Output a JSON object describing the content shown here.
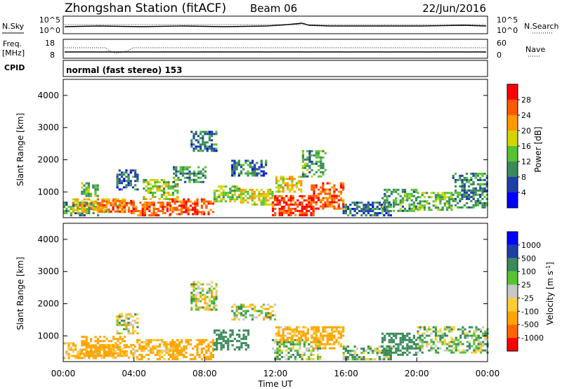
{
  "header": {
    "title": "Zhongshan Station (fitACF)",
    "beam": "Beam 06",
    "date": "22/Jun/2016"
  },
  "status_panels": {
    "nsky_label": "N.Sky",
    "nsky_ticks": [
      "10^5",
      "10^0"
    ],
    "nsearch_label": "N.Search",
    "nsearch_ticks": [
      "10^5",
      "10^0"
    ],
    "freq_label": "Freq.",
    "freq_unit": "[MHz]",
    "freq_ticks": [
      "18",
      "8"
    ],
    "nave_label": "Nave",
    "nave_ticks": [
      "60",
      "0"
    ],
    "cpid_label": "CPID",
    "cpid_text": "normal (fast stereo) 153"
  },
  "colors": {
    "power_scale": [
      "#0000ff",
      "#1f3fa8",
      "#3a8a5a",
      "#55c433",
      "#d4d400",
      "#ff9900",
      "#ff5a00",
      "#ff0000"
    ],
    "velocity_scale": [
      "#ff0000",
      "#ff6600",
      "#ffa500",
      "#ffcc33",
      "#c8c8c8",
      "#55c433",
      "#3a8a5a",
      "#1f3fa8",
      "#0000ff"
    ]
  },
  "chart_data": [
    {
      "type": "heatmap",
      "name": "power",
      "ylabel": "Slant Range [km]",
      "yticks": [
        "4000",
        "3000",
        "2000",
        "1000"
      ],
      "ylim": [
        200,
        4500
      ],
      "xlim": [
        0,
        24
      ],
      "colorbar_label": "Power [dB]",
      "colorbar_ticks": [
        "28",
        "24",
        "20",
        "16",
        "12",
        "8",
        "4"
      ],
      "clim": [
        0,
        32
      ],
      "regions": [
        {
          "t0": 0.0,
          "t1": 2.0,
          "r0": 300,
          "r1": 700,
          "v": 10
        },
        {
          "t0": 0.5,
          "t1": 3.5,
          "r0": 350,
          "r1": 800,
          "v": 20
        },
        {
          "t0": 1.0,
          "t1": 2.0,
          "r0": 900,
          "r1": 1300,
          "v": 14
        },
        {
          "t0": 2.0,
          "t1": 4.0,
          "r0": 400,
          "r1": 750,
          "v": 24
        },
        {
          "t0": 3.0,
          "t1": 4.2,
          "r0": 1100,
          "r1": 1700,
          "v": 8
        },
        {
          "t0": 3.8,
          "t1": 6.0,
          "r0": 300,
          "r1": 700,
          "v": 26
        },
        {
          "t0": 4.5,
          "t1": 6.5,
          "r0": 800,
          "r1": 1400,
          "v": 16
        },
        {
          "t0": 6.0,
          "t1": 8.5,
          "r0": 300,
          "r1": 800,
          "v": 27
        },
        {
          "t0": 6.2,
          "t1": 8.0,
          "r0": 1300,
          "r1": 1800,
          "v": 10
        },
        {
          "t0": 7.2,
          "t1": 8.6,
          "r0": 2300,
          "r1": 2900,
          "v": 8
        },
        {
          "t0": 8.5,
          "t1": 10.0,
          "r0": 700,
          "r1": 1200,
          "v": 16
        },
        {
          "t0": 9.5,
          "t1": 11.5,
          "r0": 1500,
          "r1": 2000,
          "v": 8
        },
        {
          "t0": 10.0,
          "t1": 12.0,
          "r0": 600,
          "r1": 1100,
          "v": 18
        },
        {
          "t0": 11.8,
          "t1": 14.2,
          "r0": 300,
          "r1": 900,
          "v": 28
        },
        {
          "t0": 12.0,
          "t1": 13.5,
          "r0": 1000,
          "r1": 1500,
          "v": 20
        },
        {
          "t0": 13.5,
          "t1": 14.8,
          "r0": 1500,
          "r1": 2300,
          "v": 12
        },
        {
          "t0": 14.0,
          "t1": 15.8,
          "r0": 500,
          "r1": 1300,
          "v": 26
        },
        {
          "t0": 15.8,
          "t1": 18.5,
          "r0": 250,
          "r1": 700,
          "v": 8
        },
        {
          "t0": 18.0,
          "t1": 20.0,
          "r0": 400,
          "r1": 1100,
          "v": 12
        },
        {
          "t0": 20.0,
          "t1": 22.0,
          "r0": 450,
          "r1": 1000,
          "v": 14
        },
        {
          "t0": 22.0,
          "t1": 24.0,
          "r0": 500,
          "r1": 1600,
          "v": 10
        }
      ]
    },
    {
      "type": "heatmap",
      "name": "velocity",
      "ylabel": "Slant Range [km]",
      "yticks": [
        "4000",
        "3000",
        "2000",
        "1000"
      ],
      "ylim": [
        200,
        4500
      ],
      "xlim": [
        0,
        24
      ],
      "xlabel": "Time UT",
      "xticks": [
        "00:00",
        "04:00",
        "08:00",
        "12:00",
        "16:00",
        "20:00",
        "00:00"
      ],
      "colorbar_label": "Velocity [m s^-1]",
      "colorbar_ticks": [
        "1000",
        "500",
        "100",
        "25",
        "-25",
        "-100",
        "-500",
        "-1000"
      ],
      "regions": [
        {
          "t0": 0.0,
          "t1": 2.0,
          "r0": 300,
          "r1": 800,
          "v": -150
        },
        {
          "t0": 1.0,
          "t1": 3.5,
          "r0": 400,
          "r1": 1000,
          "v": -300
        },
        {
          "t0": 2.0,
          "t1": 4.0,
          "r0": 350,
          "r1": 750,
          "v": -200
        },
        {
          "t0": 3.0,
          "t1": 4.2,
          "r0": 1100,
          "r1": 1700,
          "v": 0
        },
        {
          "t0": 4.0,
          "t1": 6.5,
          "r0": 300,
          "r1": 900,
          "v": -150
        },
        {
          "t0": 6.0,
          "t1": 8.5,
          "r0": 300,
          "r1": 900,
          "v": -300
        },
        {
          "t0": 7.2,
          "t1": 8.6,
          "r0": 1800,
          "r1": 2700,
          "v": 0
        },
        {
          "t0": 8.5,
          "t1": 10.5,
          "r0": 600,
          "r1": 1200,
          "v": 300
        },
        {
          "t0": 9.5,
          "t1": 12.0,
          "r0": 1500,
          "r1": 2000,
          "v": 0
        },
        {
          "t0": 11.8,
          "t1": 14.5,
          "r0": 300,
          "r1": 900,
          "v": 60
        },
        {
          "t0": 12.0,
          "t1": 13.8,
          "r0": 900,
          "r1": 1300,
          "v": -150
        },
        {
          "t0": 14.0,
          "t1": 15.8,
          "r0": 600,
          "r1": 1300,
          "v": -200
        },
        {
          "t0": 15.8,
          "t1": 18.5,
          "r0": 250,
          "r1": 700,
          "v": 60
        },
        {
          "t0": 18.0,
          "t1": 20.0,
          "r0": 400,
          "r1": 1100,
          "v": 300
        },
        {
          "t0": 20.0,
          "t1": 24.0,
          "r0": 450,
          "r1": 1300,
          "v": 60
        }
      ]
    }
  ]
}
